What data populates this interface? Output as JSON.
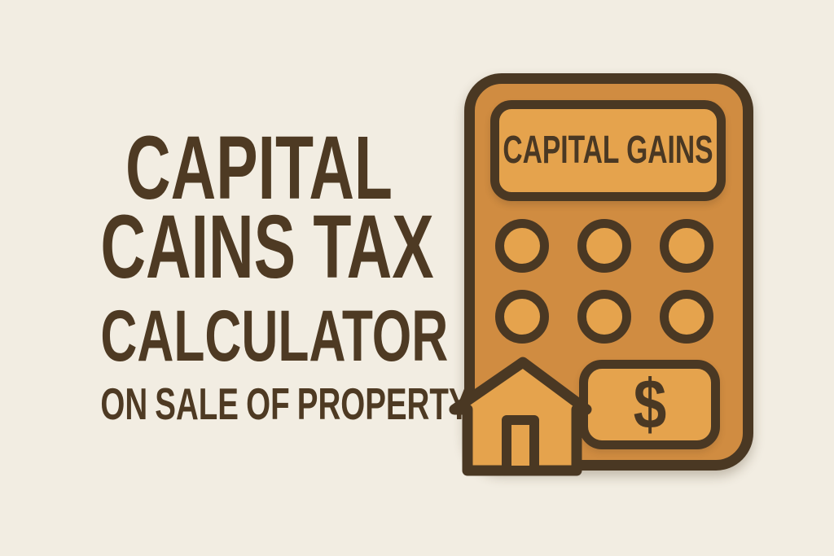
{
  "poster": {
    "background_color": "#F2EDE2",
    "text_color": "#4E3A23",
    "title": {
      "line1": "CAPITAL",
      "line2": "CAINS TAX",
      "line3": "CALCULATOR",
      "line4": "ON SALE OF PROPERTY"
    },
    "calculator": {
      "body_color": "#D08C41",
      "panel_color": "#E5A34D",
      "outline_color": "#4A3823",
      "display_label": "CAPITAL GAINS",
      "keypad": {
        "rows": 2,
        "columns": 3
      },
      "dollar_symbol": "$"
    },
    "icons": {
      "house": "house-icon",
      "dollar": "dollar-sign-icon"
    }
  }
}
